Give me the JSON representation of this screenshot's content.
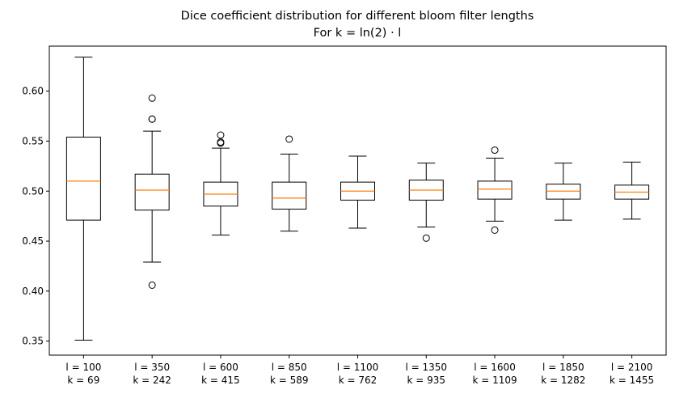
{
  "chart_data": {
    "type": "boxplot",
    "title": "Dice coefficient distribution for different bloom filter lengths",
    "subtitle": "For k = ln(2) · l",
    "ylim": [
      0.336,
      0.645
    ],
    "yticks": [
      0.35,
      0.4,
      0.45,
      0.5,
      0.55,
      0.6
    ],
    "ytick_labels": [
      "0.35",
      "0.40",
      "0.45",
      "0.50",
      "0.55",
      "0.60"
    ],
    "grid": false,
    "colors": {
      "box": "#000000",
      "median": "#ff7f0e"
    },
    "categories": [
      {
        "l": "l = 100",
        "k": "k = 69"
      },
      {
        "l": "l = 350",
        "k": "k = 242"
      },
      {
        "l": "l = 600",
        "k": "k = 415"
      },
      {
        "l": "l = 850",
        "k": "k = 589"
      },
      {
        "l": "l = 1100",
        "k": "k = 762"
      },
      {
        "l": "l = 1350",
        "k": "k = 935"
      },
      {
        "l": "l = 1600",
        "k": "k = 1109"
      },
      {
        "l": "l = 1850",
        "k": "k = 1282"
      },
      {
        "l": "l = 2100",
        "k": "k = 1455"
      }
    ],
    "boxes": [
      {
        "whislo": 0.351,
        "q1": 0.471,
        "med": 0.51,
        "q3": 0.554,
        "whishi": 0.634,
        "fliers": []
      },
      {
        "whislo": 0.429,
        "q1": 0.481,
        "med": 0.501,
        "q3": 0.517,
        "whishi": 0.56,
        "fliers": [
          0.593,
          0.572,
          0.572,
          0.406
        ]
      },
      {
        "whislo": 0.456,
        "q1": 0.485,
        "med": 0.497,
        "q3": 0.509,
        "whishi": 0.543,
        "fliers": [
          0.556,
          0.549,
          0.548
        ]
      },
      {
        "whislo": 0.46,
        "q1": 0.482,
        "med": 0.493,
        "q3": 0.509,
        "whishi": 0.537,
        "fliers": [
          0.552
        ]
      },
      {
        "whislo": 0.463,
        "q1": 0.491,
        "med": 0.5,
        "q3": 0.509,
        "whishi": 0.535,
        "fliers": []
      },
      {
        "whislo": 0.464,
        "q1": 0.491,
        "med": 0.501,
        "q3": 0.511,
        "whishi": 0.528,
        "fliers": [
          0.453
        ]
      },
      {
        "whislo": 0.47,
        "q1": 0.492,
        "med": 0.502,
        "q3": 0.51,
        "whishi": 0.533,
        "fliers": [
          0.541,
          0.461
        ]
      },
      {
        "whislo": 0.471,
        "q1": 0.492,
        "med": 0.5,
        "q3": 0.507,
        "whishi": 0.528,
        "fliers": []
      },
      {
        "whislo": 0.472,
        "q1": 0.492,
        "med": 0.499,
        "q3": 0.506,
        "whishi": 0.529,
        "fliers": []
      }
    ]
  }
}
